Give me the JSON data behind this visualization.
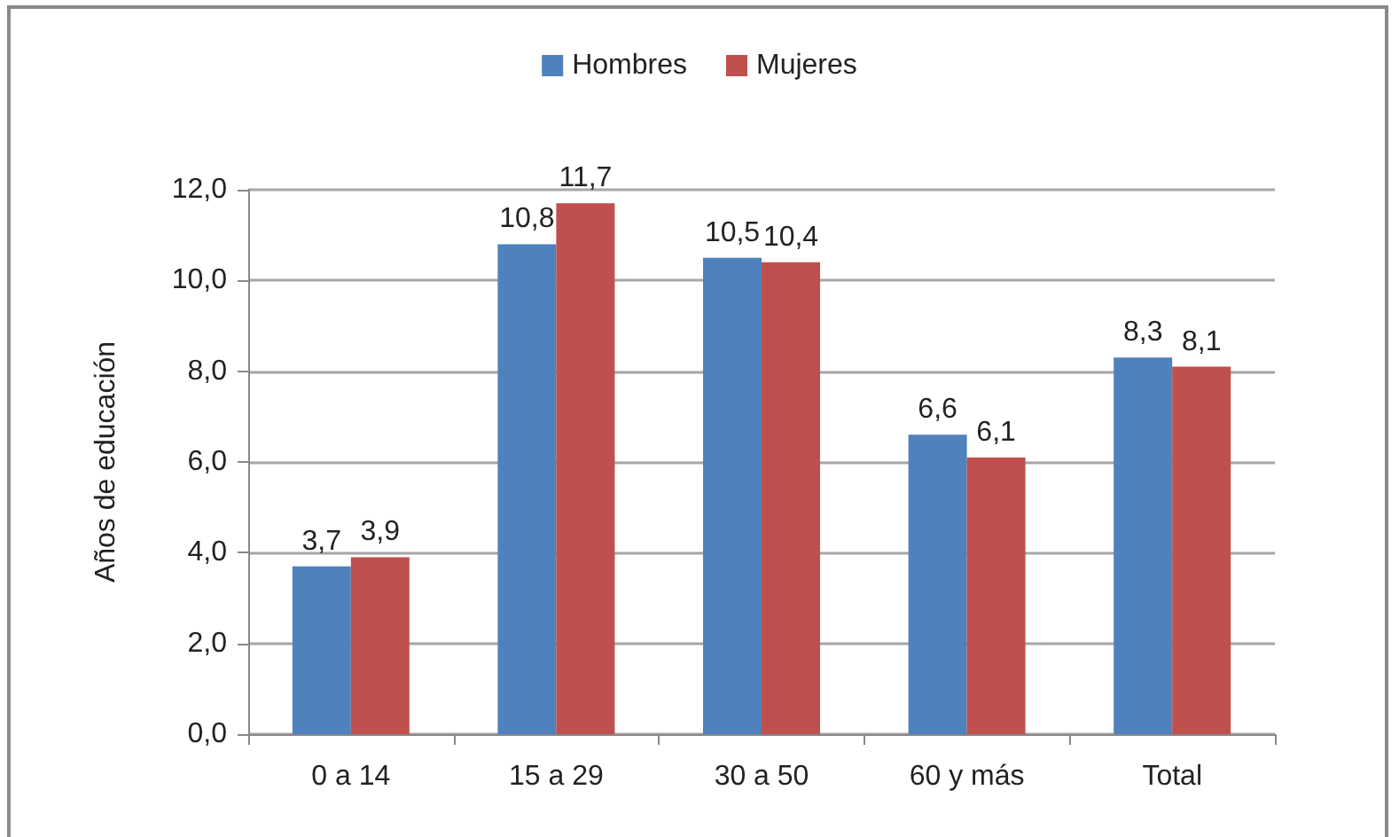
{
  "chart_data": {
    "type": "bar",
    "ylabel": "Años de educación",
    "categories": [
      "0 a 14",
      "15 a 29",
      "30 a 50",
      "60 y más",
      "Total"
    ],
    "series": [
      {
        "name": "Hombres",
        "color": "#4f81bd",
        "values": [
          3.7,
          10.8,
          10.5,
          6.6,
          8.3
        ],
        "value_labels": [
          "3,7",
          "10,8",
          "10,5",
          "6,6",
          "8,3"
        ]
      },
      {
        "name": "Mujeres",
        "color": "#c0504d",
        "values": [
          3.9,
          11.7,
          10.4,
          6.1,
          8.1
        ],
        "value_labels": [
          "3,9",
          "11,7",
          "10,4",
          "6,1",
          "8,1"
        ]
      }
    ],
    "ylim": [
      0,
      12
    ],
    "yticks": [
      {
        "value": 0,
        "label": "0,0"
      },
      {
        "value": 2,
        "label": "2,0"
      },
      {
        "value": 4,
        "label": "4,0"
      },
      {
        "value": 6,
        "label": "6,0"
      },
      {
        "value": 8,
        "label": "8,0"
      },
      {
        "value": 10,
        "label": "10,0"
      },
      {
        "value": 12,
        "label": "12,0"
      }
    ],
    "grid": "y",
    "legend": "top"
  }
}
